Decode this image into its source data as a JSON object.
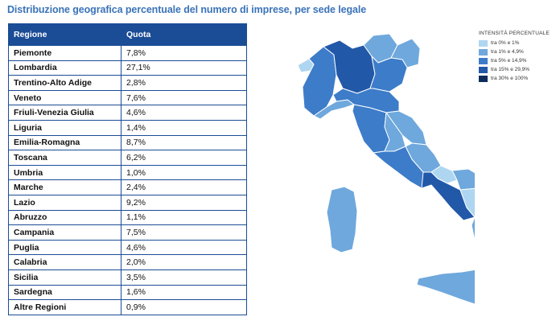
{
  "title": "Distribuzione geografica percentuale del numero di imprese, per sede legale",
  "colors": {
    "header_bg": "#1b4c96",
    "title": "#3a73b8",
    "class_1": "#aed6f1",
    "class_2": "#6fa8dc",
    "class_3": "#3d7cc9",
    "class_4": "#2258a8",
    "class_5": "#0c2c5c"
  },
  "chart_data": {
    "type": "table",
    "title": "Distribuzione geografica percentuale del numero di imprese, per sede legale",
    "columns": [
      "Regione",
      "Quota"
    ],
    "rows": [
      {
        "region": "Piemonte",
        "share": "7,8%",
        "value": 7.8
      },
      {
        "region": "Lombardia",
        "share": "27,1%",
        "value": 27.1
      },
      {
        "region": "Trentino-Alto Adige",
        "share": "2,8%",
        "value": 2.8
      },
      {
        "region": "Veneto",
        "share": "7,6%",
        "value": 7.6
      },
      {
        "region": "Friuli-Venezia Giulia",
        "share": "4,6%",
        "value": 4.6
      },
      {
        "region": "Liguria",
        "share": "1,4%",
        "value": 1.4
      },
      {
        "region": "Emilia-Romagna",
        "share": "8,7%",
        "value": 8.7
      },
      {
        "region": "Toscana",
        "share": "6,2%",
        "value": 6.2
      },
      {
        "region": "Umbria",
        "share": "1,0%",
        "value": 1.0
      },
      {
        "region": "Marche",
        "share": "2,4%",
        "value": 2.4
      },
      {
        "region": "Lazio",
        "share": "9,2%",
        "value": 9.2
      },
      {
        "region": "Abruzzo",
        "share": "1,1%",
        "value": 1.1
      },
      {
        "region": "Campania",
        "share": "7,5%",
        "value": 7.5
      },
      {
        "region": "Puglia",
        "share": "4,6%",
        "value": 4.6
      },
      {
        "region": "Calabria",
        "share": "2,0%",
        "value": 2.0
      },
      {
        "region": "Sicilia",
        "share": "3,5%",
        "value": 3.5
      },
      {
        "region": "Sardegna",
        "share": "1,6%",
        "value": 1.6
      },
      {
        "region": "Altre Regioni",
        "share": "0,9%",
        "value": 0.9
      }
    ],
    "legend": {
      "title": "INTENSITÀ PERCENTUALE",
      "placement": "top-right",
      "items": [
        {
          "label": "tra 0% e 1%",
          "color": "#aed6f1"
        },
        {
          "label": "tra 1% e 4,9%",
          "color": "#6fa8dc"
        },
        {
          "label": "tra 5% e 14,9%",
          "color": "#3d7cc9"
        },
        {
          "label": "tra 15% e 29,9%",
          "color": "#2258a8"
        },
        {
          "label": "tra 30% e 100%",
          "color": "#0c2c5c"
        }
      ]
    }
  }
}
